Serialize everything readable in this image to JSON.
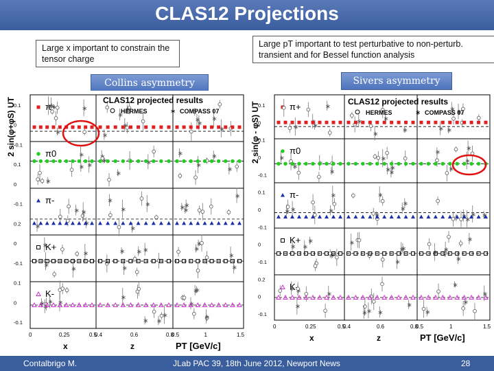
{
  "slide": {
    "title": "CLAS12 Projections",
    "note_left": "Large x important to constrain the tensor charge",
    "note_right": "Large pT important to test perturbative to non-perturb. transient and for Bessel function analysis",
    "label_collins": "Collins asymmetry",
    "label_sivers": "Sivers asymmetry",
    "footer_author": "Contalbrigo M.",
    "footer_event": "JLab PAC 39, 18th June 2012, Newport News",
    "footer_page": "28"
  },
  "plots": {
    "legend_title": "CLAS12 projected results",
    "legend_hermes": "HERMES",
    "legend_compass": "COMPASS 07",
    "collins_ylabel": "2 sin(φ+φS) UT",
    "sivers_ylabel": "2 sin(φ - φS) UT",
    "xlabel_x": "x",
    "xlabel_z": "z",
    "xlabel_pt": "PT [GeV/c]",
    "rows": [
      "π+",
      "π0",
      "π-",
      "K+",
      "K-"
    ],
    "ticks_x": [
      "0",
      "0.25",
      "0.5"
    ],
    "ticks_z": [
      "0.4",
      "0.6",
      "0.8"
    ],
    "ticks_pt": [
      "0.5",
      "1",
      "1.5"
    ],
    "collins_yticks": [
      "0.1",
      "0",
      "-0.1",
      "0.1",
      "0",
      "-0.1",
      "0.2",
      "0",
      "-0.1",
      "0.1",
      "0",
      "-0.1"
    ],
    "sivers_yticks": [
      "0.1",
      "0",
      "0.1",
      "0",
      "-0.1",
      "0.1",
      "0",
      "-0.1",
      "0",
      "-0.1",
      "0.2",
      "0",
      "-0.1"
    ]
  },
  "colors": {
    "pi_plus": "#e02020",
    "pi_zero": "#22cc22",
    "pi_minus": "#1a2fa8",
    "k_plus": "#000000",
    "k_minus": "#d030d0",
    "highlight": "#e01010",
    "title_bar": "#4a6aab"
  },
  "chart_data": [
    {
      "type": "scatter",
      "title": "Collins asymmetry",
      "ylabel": "2 sin(φ+φS) UT",
      "panels": [
        "x",
        "z",
        "PT [GeV/c]"
      ],
      "series": [
        {
          "name": "π+",
          "values": [
            0.0,
            0.0,
            0.0,
            0.0,
            0.0,
            0.0,
            0.0,
            0.0,
            0.0,
            0.0
          ]
        },
        {
          "name": "π0",
          "values": [
            0.0,
            0.0,
            0.0,
            0.0,
            0.0,
            0.0,
            0.0,
            0.0,
            0.0,
            0.0
          ]
        },
        {
          "name": "π-",
          "values": [
            0.0,
            0.0,
            0.0,
            0.0,
            0.0,
            0.0,
            0.0,
            0.0,
            0.0,
            0.0
          ]
        },
        {
          "name": "K+",
          "values": [
            0.0,
            0.0,
            0.0,
            0.0,
            0.0,
            0.0,
            0.0,
            0.0,
            0.0,
            0.0
          ]
        },
        {
          "name": "K-",
          "values": [
            0.0,
            0.0,
            0.0,
            0.0,
            0.0,
            0.0,
            0.0,
            0.0,
            0.0,
            0.0
          ]
        }
      ]
    },
    {
      "type": "scatter",
      "title": "Sivers asymmetry",
      "ylabel": "2 sin(φ - φS) UT",
      "panels": [
        "x",
        "z",
        "PT [GeV/c]"
      ],
      "series": [
        {
          "name": "π+",
          "values": [
            0.0,
            0.0,
            0.0,
            0.0,
            0.0,
            0.0,
            0.0,
            0.0,
            0.0,
            0.0
          ]
        },
        {
          "name": "π0",
          "values": [
            0.0,
            0.0,
            0.0,
            0.0,
            0.0,
            0.0,
            0.0,
            0.0,
            0.0,
            0.0
          ]
        },
        {
          "name": "π-",
          "values": [
            0.0,
            0.0,
            0.0,
            0.0,
            0.0,
            0.0,
            0.0,
            0.0,
            0.0,
            0.0
          ]
        },
        {
          "name": "K+",
          "values": [
            0.0,
            0.0,
            0.0,
            0.0,
            0.0,
            0.0,
            0.0,
            0.0,
            0.0,
            0.0
          ]
        },
        {
          "name": "K-",
          "values": [
            0.0,
            0.0,
            0.0,
            0.0,
            0.0,
            0.0,
            0.0,
            0.0,
            0.0,
            0.0
          ]
        }
      ]
    }
  ]
}
